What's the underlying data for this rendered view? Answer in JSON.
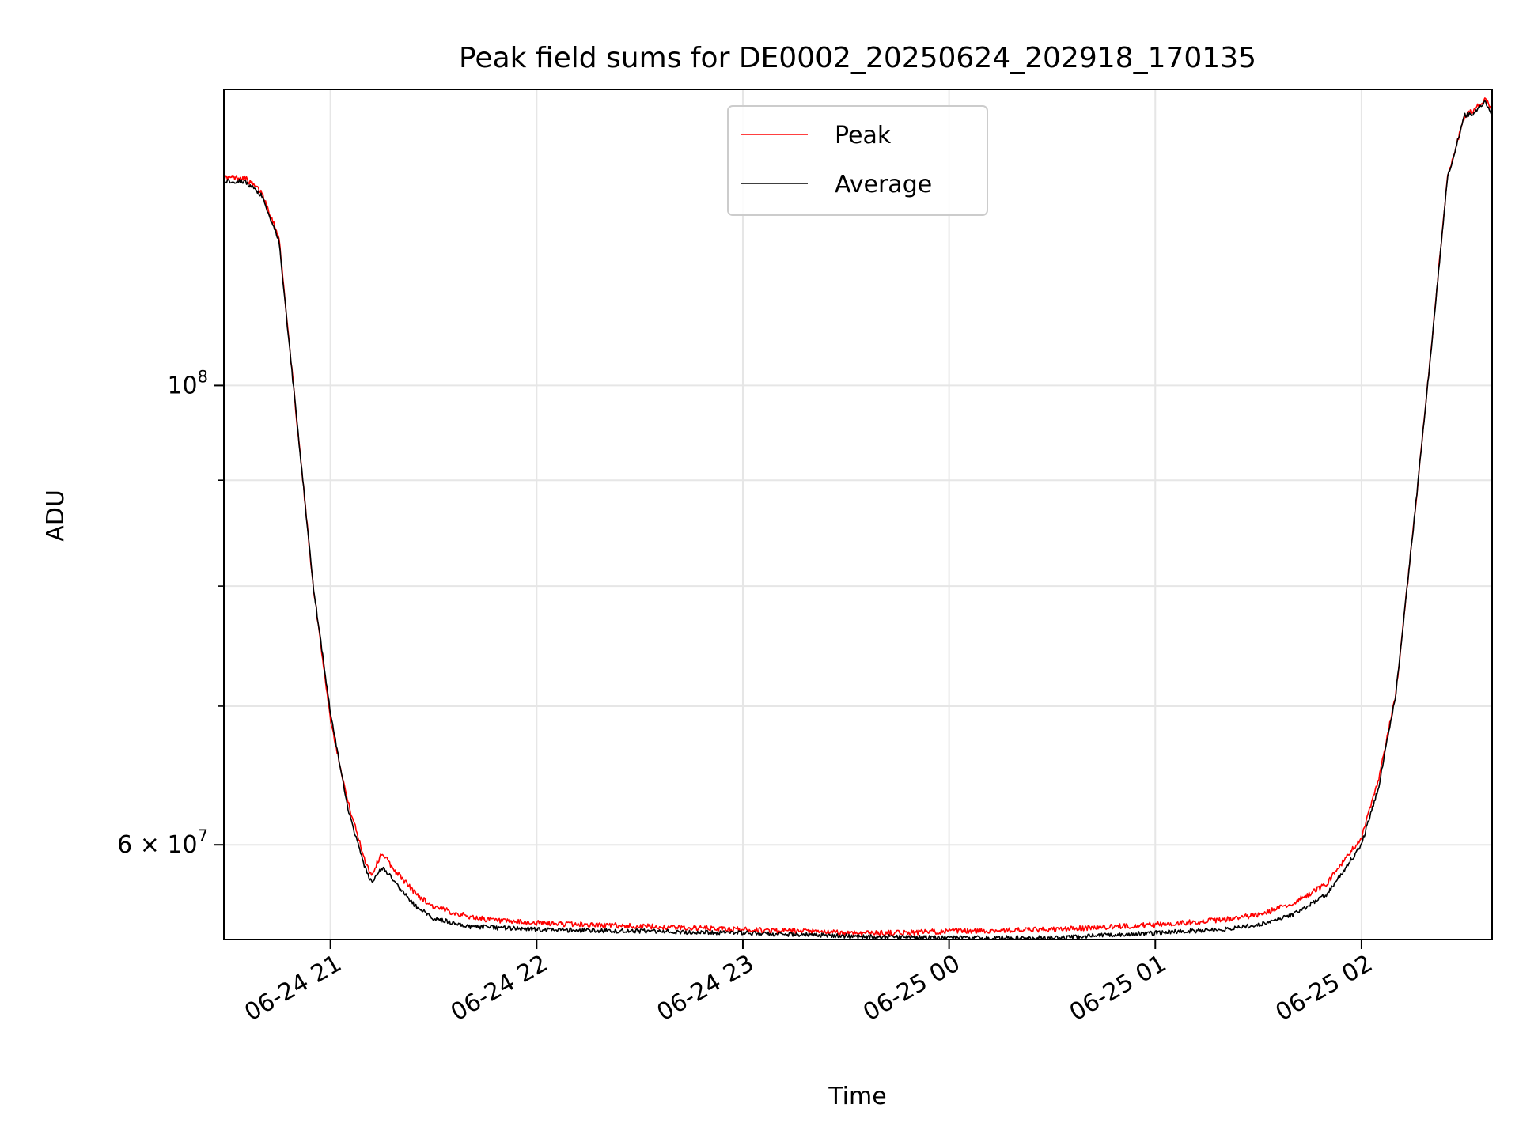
{
  "chart_data": {
    "type": "line",
    "title": "Peak field sums for DE0002_20250624_202918_170135",
    "xlabel": "Time",
    "ylabel": "ADU",
    "x_scale": "time",
    "y_scale": "log",
    "xlim": [
      "2025-06-24 20:29",
      "2025-06-25 02:38"
    ],
    "ylim": [
      54000000,
      139000000
    ],
    "x_ticks": [
      "06-24 21",
      "06-24 22",
      "06-24 23",
      "06-25 00",
      "06-25 01",
      "06-25 02"
    ],
    "y_ticks": [
      {
        "value": 100000000,
        "mantissa": "",
        "base": "10",
        "exp": "8"
      },
      {
        "value": 60000000,
        "mantissa": "6 × ",
        "base": "10",
        "exp": "7"
      }
    ],
    "y_minor_ticks": [
      70000000,
      80000000,
      90000000
    ],
    "grid": true,
    "legend": {
      "position": "top-center",
      "entries": [
        "Peak",
        "Average"
      ]
    },
    "series": [
      {
        "name": "Peak",
        "color": "#ff0000",
        "noise": 0.003,
        "x": [
          "2025-06-24 20:29",
          "2025-06-24 20:35",
          "2025-06-24 20:40",
          "2025-06-24 20:45",
          "2025-06-24 20:50",
          "2025-06-24 20:55",
          "2025-06-24 21:00",
          "2025-06-24 21:05",
          "2025-06-24 21:10",
          "2025-06-24 21:12",
          "2025-06-24 21:15",
          "2025-06-24 21:18",
          "2025-06-24 21:20",
          "2025-06-24 21:25",
          "2025-06-24 21:30",
          "2025-06-24 21:40",
          "2025-06-24 21:50",
          "2025-06-24 22:00",
          "2025-06-24 22:30",
          "2025-06-24 23:00",
          "2025-06-24 23:30",
          "2025-06-24 23:45",
          "2025-06-25 00:00",
          "2025-06-25 00:30",
          "2025-06-25 00:50",
          "2025-06-25 01:00",
          "2025-06-25 01:20",
          "2025-06-25 01:30",
          "2025-06-25 01:40",
          "2025-06-25 01:50",
          "2025-06-25 02:00",
          "2025-06-25 02:05",
          "2025-06-25 02:10",
          "2025-06-25 02:15",
          "2025-06-25 02:20",
          "2025-06-25 02:25",
          "2025-06-25 02:30",
          "2025-06-25 02:33",
          "2025-06-25 02:36",
          "2025-06-25 02:38"
        ],
        "y": [
          126000000,
          126000000,
          124000000,
          118000000,
          97000000,
          80000000,
          69000000,
          63000000,
          59000000,
          58000000,
          59500000,
          58500000,
          58000000,
          56800000,
          56000000,
          55400000,
          55100000,
          55000000,
          54800000,
          54600000,
          54400000,
          54400000,
          54500000,
          54600000,
          54800000,
          54900000,
          55200000,
          55500000,
          56200000,
          57500000,
          60500000,
          64500000,
          71000000,
          85000000,
          103000000,
          126000000,
          135000000,
          136000000,
          137500000,
          136000000
        ]
      },
      {
        "name": "Average",
        "color": "#000000",
        "noise": 0.0025,
        "x": [
          "2025-06-24 20:29",
          "2025-06-24 20:35",
          "2025-06-24 20:40",
          "2025-06-24 20:45",
          "2025-06-24 20:50",
          "2025-06-24 20:55",
          "2025-06-24 21:00",
          "2025-06-24 21:05",
          "2025-06-24 21:10",
          "2025-06-24 21:12",
          "2025-06-24 21:15",
          "2025-06-24 21:18",
          "2025-06-24 21:20",
          "2025-06-24 21:25",
          "2025-06-24 21:30",
          "2025-06-24 21:40",
          "2025-06-24 21:50",
          "2025-06-24 22:00",
          "2025-06-24 22:30",
          "2025-06-24 23:00",
          "2025-06-24 23:30",
          "2025-06-24 23:45",
          "2025-06-25 00:00",
          "2025-06-25 00:30",
          "2025-06-25 00:50",
          "2025-06-25 01:00",
          "2025-06-25 01:20",
          "2025-06-25 01:30",
          "2025-06-25 01:40",
          "2025-06-25 01:50",
          "2025-06-25 02:00",
          "2025-06-25 02:05",
          "2025-06-25 02:10",
          "2025-06-25 02:15",
          "2025-06-25 02:20",
          "2025-06-25 02:25",
          "2025-06-25 02:30",
          "2025-06-25 02:33",
          "2025-06-25 02:36",
          "2025-06-25 02:38"
        ],
        "y": [
          125500000,
          125500000,
          123500000,
          117500000,
          97000000,
          80000000,
          69500000,
          62500000,
          58500000,
          57500000,
          58500000,
          57800000,
          57200000,
          56000000,
          55300000,
          54800000,
          54700000,
          54600000,
          54500000,
          54400000,
          54200000,
          54150000,
          54100000,
          54100000,
          54300000,
          54400000,
          54600000,
          54900000,
          55500000,
          56800000,
          60000000,
          64000000,
          71000000,
          85000000,
          103000000,
          126000000,
          135000000,
          135500000,
          137000000,
          135000000
        ]
      }
    ]
  }
}
